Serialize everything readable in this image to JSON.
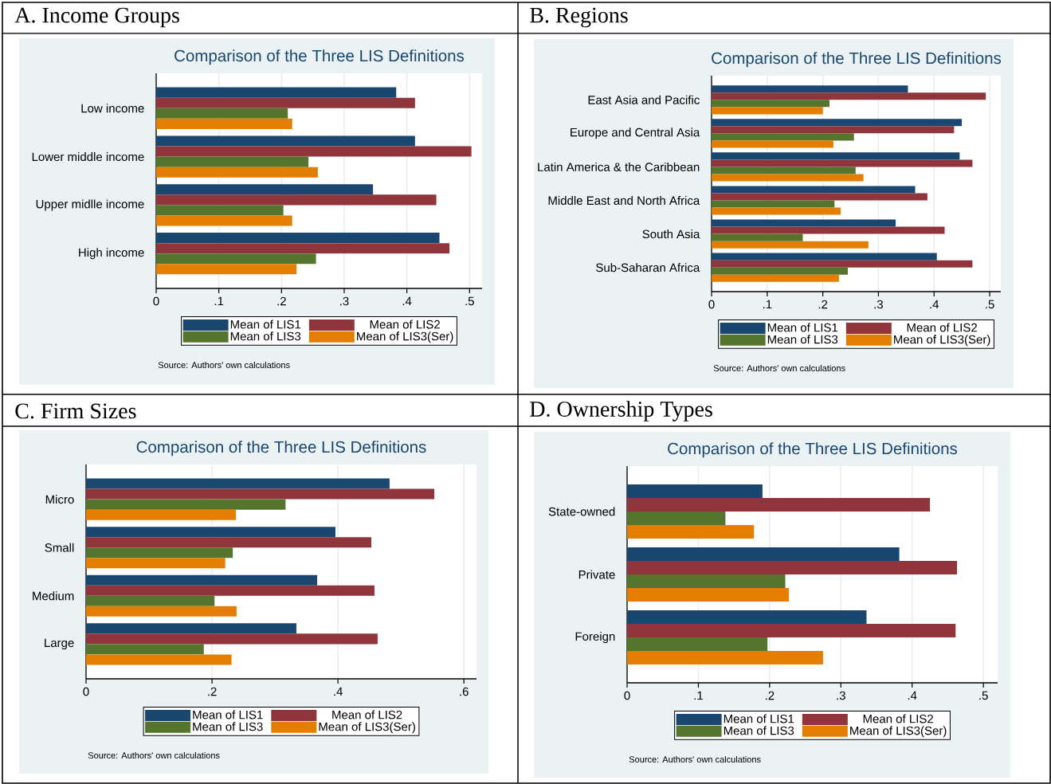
{
  "chart_data": [
    {
      "type": "bar",
      "orientation": "horizontal",
      "title": "A. Income Groups",
      "subtitle": "Comparison of the Three LIS Definitions",
      "categories": [
        "Low income",
        "Lower middle income",
        "Upper midlle income",
        "High income"
      ],
      "series": [
        {
          "name": "Mean of LIS1",
          "color": "#1a476f",
          "values": [
            0.383,
            0.413,
            0.346,
            0.452
          ]
        },
        {
          "name": "Mean of LIS2",
          "color": "#90353b",
          "values": [
            0.413,
            0.503,
            0.447,
            0.468
          ]
        },
        {
          "name": "Mean of LIS3",
          "color": "#55752f",
          "values": [
            0.21,
            0.243,
            0.203,
            0.255
          ]
        },
        {
          "name": "Mean of LIS3(Ser)",
          "color": "#e37e00",
          "values": [
            0.217,
            0.258,
            0.217,
            0.224
          ]
        }
      ],
      "xlim": [
        0,
        0.52
      ],
      "xticks": [
        0,
        {
          "value": 0.1,
          "label": ".1"
        },
        {
          "value": 0.2,
          "label": ".2"
        },
        {
          "value": 0.3,
          "label": ".3"
        },
        {
          "value": 0.4,
          "label": ".4"
        },
        {
          "value": 0.5,
          "label": ".5"
        }
      ],
      "grid": "x",
      "legend": "bottom",
      "annotations": [
        "Source: Authors' own calculations"
      ]
    },
    {
      "type": "bar",
      "orientation": "horizontal",
      "title": "B. Regions",
      "subtitle": "Comparison of the Three LIS Definitions",
      "categories": [
        "East Asia and Pacific",
        "Europe and Central Asia",
        "Latin America & the Caribbean",
        "Middle East and North Africa",
        "South Asia",
        "Sub-Saharan Africa"
      ],
      "series": [
        {
          "name": "Mean of LIS1",
          "color": "#1a476f",
          "values": [
            0.353,
            0.45,
            0.446,
            0.366,
            0.331,
            0.405
          ]
        },
        {
          "name": "Mean of LIS2",
          "color": "#90353b",
          "values": [
            0.493,
            0.436,
            0.469,
            0.388,
            0.419,
            0.469
          ]
        },
        {
          "name": "Mean of LIS3",
          "color": "#55752f",
          "values": [
            0.212,
            0.256,
            0.259,
            0.221,
            0.164,
            0.245
          ]
        },
        {
          "name": "Mean of LIS3(Ser)",
          "color": "#e37e00",
          "values": [
            0.2,
            0.219,
            0.273,
            0.232,
            0.282,
            0.229
          ]
        }
      ],
      "xlim": [
        0,
        0.52
      ],
      "xticks": [
        0,
        {
          "value": 0.1,
          "label": ".1"
        },
        {
          "value": 0.2,
          "label": ".2"
        },
        {
          "value": 0.3,
          "label": ".3"
        },
        {
          "value": 0.4,
          "label": ".4"
        },
        {
          "value": 0.5,
          "label": ".5"
        }
      ],
      "grid": "x",
      "legend": "bottom",
      "annotations": [
        "Source: Authors' own calculations"
      ]
    },
    {
      "type": "bar",
      "orientation": "horizontal",
      "title": "C. Firm Sizes",
      "subtitle": "Comparison of the Three LIS Definitions",
      "categories": [
        "Micro",
        "Small",
        "Medium",
        "Large"
      ],
      "series": [
        {
          "name": "Mean of LIS1",
          "color": "#1a476f",
          "values": [
            0.482,
            0.396,
            0.367,
            0.334
          ]
        },
        {
          "name": "Mean of LIS2",
          "color": "#90353b",
          "values": [
            0.553,
            0.453,
            0.458,
            0.463
          ]
        },
        {
          "name": "Mean of LIS3",
          "color": "#55752f",
          "values": [
            0.317,
            0.233,
            0.204,
            0.187
          ]
        },
        {
          "name": "Mean of LIS3(Ser)",
          "color": "#e37e00",
          "values": [
            0.238,
            0.221,
            0.239,
            0.231
          ]
        }
      ],
      "xlim": [
        0,
        0.62
      ],
      "xticks": [
        0,
        {
          "value": 0.2,
          "label": ".2"
        },
        {
          "value": 0.4,
          "label": ".4"
        },
        {
          "value": 0.6,
          "label": ".6"
        }
      ],
      "grid": "x",
      "legend": "bottom",
      "annotations": [
        "Source: Authors' own calculations"
      ]
    },
    {
      "type": "bar",
      "orientation": "horizontal",
      "title": "D. Ownership Types",
      "subtitle": "Comparison of the Three LIS Definitions",
      "categories": [
        "State-owned",
        "Private",
        "Foreign"
      ],
      "series": [
        {
          "name": "Mean of LIS1",
          "color": "#1a476f",
          "values": [
            0.19,
            0.382,
            0.336
          ]
        },
        {
          "name": "Mean of LIS2",
          "color": "#90353b",
          "values": [
            0.425,
            0.463,
            0.461
          ]
        },
        {
          "name": "Mean of LIS3",
          "color": "#55752f",
          "values": [
            0.138,
            0.222,
            0.197
          ]
        },
        {
          "name": "Mean of LIS3(Ser)",
          "color": "#e37e00",
          "values": [
            0.178,
            0.227,
            0.275
          ]
        }
      ],
      "xlim": [
        0,
        0.52
      ],
      "xticks": [
        0,
        {
          "value": 0.1,
          "label": ".1"
        },
        {
          "value": 0.2,
          "label": ".2"
        },
        {
          "value": 0.3,
          "label": ".3"
        },
        {
          "value": 0.4,
          "label": ".4"
        },
        {
          "value": 0.5,
          "label": ".5"
        }
      ],
      "grid": "x",
      "legend": "bottom",
      "annotations": [
        "Source: Authors' own calculations"
      ]
    }
  ]
}
